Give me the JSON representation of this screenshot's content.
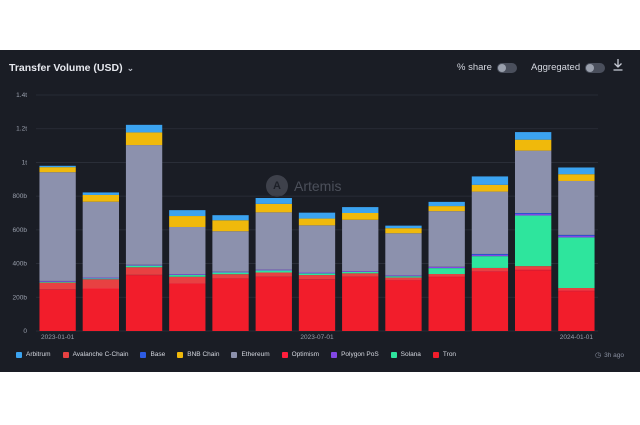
{
  "header": {
    "title": "Transfer Volume (USD)",
    "title_chevron_icon": "chevron-down-icon",
    "share_toggle_label": "% share",
    "aggregated_toggle_label": "Aggregated",
    "download_icon": "download-icon"
  },
  "watermark": {
    "text": "Artemis",
    "logo_icon": "artemis-logo-icon"
  },
  "footer": {
    "updated_text": "3h ago",
    "clock_icon": "clock-icon"
  },
  "colors": {
    "background": "#1a1d25",
    "Arbitrum": "#3ba3f0",
    "Avalanche C-Chain": "#e84142",
    "Base": "#2d5be3",
    "BNB Chain": "#f0b90b",
    "Ethereum": "#8c91ad",
    "Optimism": "#ff1e3c",
    "Polygon PoS": "#8247e5",
    "Solana": "#2ee59d",
    "Tron": "#f21d2b"
  },
  "chart_data": {
    "type": "bar",
    "stacked": true,
    "title": "Transfer Volume (USD)",
    "xlabel": "",
    "ylabel": "",
    "ylim": [
      0,
      1400000000000
    ],
    "y_ticks": [
      0,
      200000000000,
      400000000000,
      600000000000,
      800000000000,
      1000000000000,
      1200000000000,
      1400000000000
    ],
    "y_tick_labels": [
      "0",
      "200b",
      "400b",
      "600b",
      "800b",
      "1t",
      "1.2t",
      "1.4t"
    ],
    "categories": [
      "2023-01",
      "2023-02",
      "2023-03",
      "2023-04",
      "2023-05",
      "2023-06",
      "2023-07",
      "2023-08",
      "2023-09",
      "2023-10",
      "2023-11",
      "2023-12",
      "2024-01"
    ],
    "x_tick_labels": [
      {
        "category": "2023-01",
        "label": "2023-01-01"
      },
      {
        "category": "2023-07",
        "label": "2023-07-01"
      },
      {
        "category": "2024-01",
        "label": "2024-01-01"
      }
    ],
    "legend_position": "bottom",
    "grid": true,
    "series": [
      {
        "name": "Tron",
        "values": [
          245,
          250,
          330,
          280,
          310,
          320,
          305,
          320,
          300,
          320,
          350,
          360,
          235
        ]
      },
      {
        "name": "Optimism",
        "values": [
          2,
          2,
          3,
          2,
          2,
          2,
          2,
          2,
          2,
          3,
          4,
          5,
          5
        ]
      },
      {
        "name": "Avalanche C-Chain",
        "values": [
          40,
          55,
          45,
          40,
          25,
          25,
          25,
          20,
          15,
          15,
          20,
          20,
          15
        ]
      },
      {
        "name": "Solana",
        "values": [
          5,
          5,
          10,
          10,
          10,
          12,
          10,
          8,
          8,
          35,
          70,
          300,
          300
        ]
      },
      {
        "name": "Polygon PoS",
        "values": [
          5,
          5,
          5,
          5,
          5,
          5,
          5,
          5,
          5,
          8,
          8,
          10,
          10
        ]
      },
      {
        "name": "Base",
        "values": [
          0,
          0,
          0,
          0,
          0,
          0,
          0,
          0,
          0,
          0,
          5,
          5,
          5
        ]
      },
      {
        "name": "Ethereum",
        "values": [
          645,
          450,
          710,
          280,
          240,
          340,
          280,
          305,
          250,
          330,
          370,
          370,
          320
        ]
      },
      {
        "name": "BNB Chain",
        "values": [
          30,
          40,
          75,
          65,
          65,
          50,
          40,
          40,
          30,
          30,
          40,
          65,
          40
        ]
      },
      {
        "name": "Arbitrum",
        "values": [
          8,
          15,
          45,
          35,
          30,
          35,
          35,
          35,
          15,
          25,
          50,
          45,
          40
        ]
      }
    ],
    "legend_order": [
      "Arbitrum",
      "Avalanche C-Chain",
      "Base",
      "BNB Chain",
      "Ethereum",
      "Optimism",
      "Polygon PoS",
      "Solana",
      "Tron"
    ],
    "value_unit": "billions USD"
  }
}
